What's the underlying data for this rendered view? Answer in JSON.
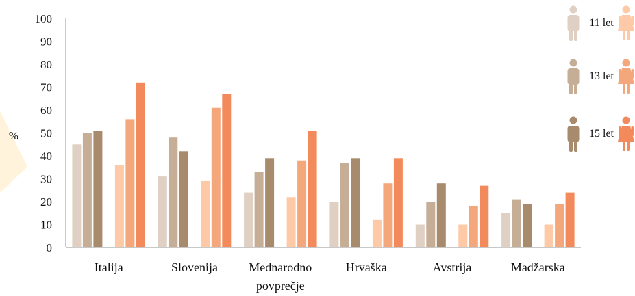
{
  "chart_data": {
    "type": "bar",
    "ylabel": "%",
    "ylim": [
      0,
      100
    ],
    "yticks": [
      0,
      10,
      20,
      30,
      40,
      50,
      60,
      70,
      80,
      90,
      100
    ],
    "categories": [
      [
        "Italija"
      ],
      [
        "Slovenija"
      ],
      [
        "Mednarodno",
        "povprečje"
      ],
      [
        "Hrvaška"
      ],
      [
        "Avstrija"
      ],
      [
        "Madžarska"
      ]
    ],
    "series": [
      {
        "gender": "male",
        "age": "11 let",
        "color": "#dfd0c3",
        "values": [
          45,
          31,
          24,
          20,
          10,
          15
        ]
      },
      {
        "gender": "male",
        "age": "13 let",
        "color": "#c6ae96",
        "values": [
          50,
          48,
          33,
          37,
          20,
          21
        ]
      },
      {
        "gender": "male",
        "age": "15 let",
        "color": "#a88a6c",
        "values": [
          51,
          42,
          39,
          39,
          28,
          19
        ]
      },
      {
        "gender": "female",
        "age": "11 let",
        "color": "#fdc9a6",
        "values": [
          36,
          29,
          22,
          12,
          10,
          10
        ]
      },
      {
        "gender": "female",
        "age": "13 let",
        "color": "#f5a77c",
        "values": [
          56,
          61,
          38,
          28,
          18,
          19
        ]
      },
      {
        "gender": "female",
        "age": "15 let",
        "color": "#f38a5c",
        "values": [
          72,
          67,
          51,
          39,
          27,
          24
        ]
      }
    ],
    "legend": {
      "position": "right",
      "entries": [
        {
          "label": "11 let",
          "male_icon": "male-person-icon",
          "female_icon": "female-person-icon",
          "male_color": "#dfd0c3",
          "female_color": "#fdc9a6"
        },
        {
          "label": "13 let",
          "male_icon": "male-person-icon",
          "female_icon": "female-person-icon",
          "male_color": "#c6ae96",
          "female_color": "#f5a77c"
        },
        {
          "label": "15 let",
          "male_icon": "male-person-icon",
          "female_icon": "female-person-icon",
          "male_color": "#a88a6c",
          "female_color": "#f38a5c"
        }
      ]
    },
    "grid": false,
    "decoration_color": "#fff3dc"
  }
}
